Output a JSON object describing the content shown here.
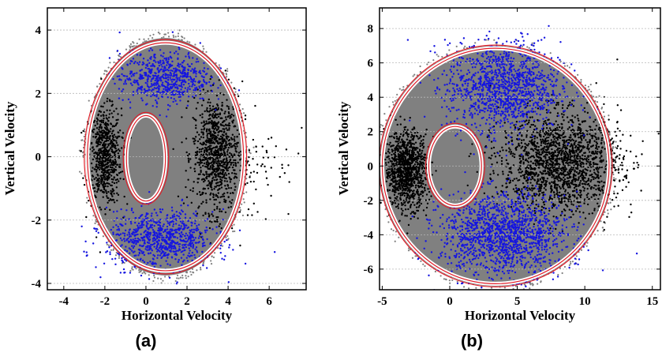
{
  "chart_data": [
    {
      "type": "scatter",
      "panel_label": "(a)",
      "xlabel": "Horizontal Velocity",
      "ylabel": "Vertical Velocity",
      "xlim": [
        -4.8,
        7.8
      ],
      "ylim": [
        -4.2,
        4.7
      ],
      "xticks": [
        -4,
        -2,
        0,
        2,
        4,
        6
      ],
      "yticks": [
        -4,
        -2,
        0,
        2,
        4
      ],
      "grid": "horizontal dashed",
      "ellipses": [
        {
          "name": "outer boundary",
          "cx": 0.95,
          "cy": 0.0,
          "rx": 3.8,
          "ry": 3.6,
          "color": "#e0202a"
        },
        {
          "name": "inner boundary",
          "cx": 0.0,
          "cy": -0.05,
          "rx": 0.95,
          "ry": 1.35,
          "color": "#e0202a"
        }
      ],
      "series": [
        {
          "color": "#808080",
          "clusters": [
            {
              "shape": "ellipse-fill",
              "cx": 0.95,
              "cy": 0.0,
              "rx": 3.9,
              "ry": 3.75
            }
          ]
        },
        {
          "color": "#000000",
          "clusters": [
            {
              "cx": -2.0,
              "cy": 0.0,
              "sx": 0.4,
              "sy": 0.75,
              "n": 700
            },
            {
              "cx": 3.4,
              "cy": 0.1,
              "sx": 0.55,
              "sy": 0.9,
              "n": 900
            },
            {
              "cx": 5.2,
              "cy": -0.1,
              "sx": 1.0,
              "sy": 1.0,
              "n": 90
            }
          ]
        },
        {
          "color": "#1515e0",
          "clusters": [
            {
              "cx": 0.9,
              "cy": 2.5,
              "sx": 1.1,
              "sy": 0.4,
              "n": 650
            },
            {
              "cx": 0.7,
              "cy": -2.6,
              "sx": 1.3,
              "sy": 0.45,
              "n": 850
            }
          ]
        }
      ]
    },
    {
      "type": "scatter",
      "panel_label": "(b)",
      "xlabel": "Horizontal Velocity",
      "ylabel": "Vertical Velocity",
      "xlim": [
        -5.2,
        15.6
      ],
      "ylim": [
        -7.2,
        9.2
      ],
      "xticks": [
        -5,
        0,
        5,
        10,
        15
      ],
      "yticks": [
        -6,
        -4,
        -2,
        0,
        2,
        4,
        6,
        8
      ],
      "grid": "horizontal dashed",
      "ellipses": [
        {
          "name": "outer boundary",
          "cx": 3.4,
          "cy": 0.0,
          "rx": 8.4,
          "ry": 6.85,
          "color": "#e0202a"
        },
        {
          "name": "inner boundary",
          "cx": 0.4,
          "cy": 0.0,
          "rx": 1.95,
          "ry": 2.3,
          "color": "#e0202a"
        }
      ],
      "series": [
        {
          "color": "#808080",
          "clusters": [
            {
              "shape": "ellipse-fill",
              "cx": 3.4,
              "cy": 0.0,
              "rx": 8.6,
              "ry": 7.0
            }
          ]
        },
        {
          "color": "#000000",
          "clusters": [
            {
              "cx": -3.2,
              "cy": -0.2,
              "sx": 0.8,
              "sy": 1.1,
              "n": 1100
            },
            {
              "cx": 8.2,
              "cy": 0.2,
              "sx": 2.2,
              "sy": 1.4,
              "n": 1800
            }
          ]
        },
        {
          "color": "#1515e0",
          "clusters": [
            {
              "cx": 4.0,
              "cy": 4.6,
              "sx": 2.1,
              "sy": 1.3,
              "n": 1300
            },
            {
              "cx": 4.0,
              "cy": -4.0,
              "sx": 2.3,
              "sy": 1.2,
              "n": 1500
            }
          ]
        }
      ]
    }
  ]
}
